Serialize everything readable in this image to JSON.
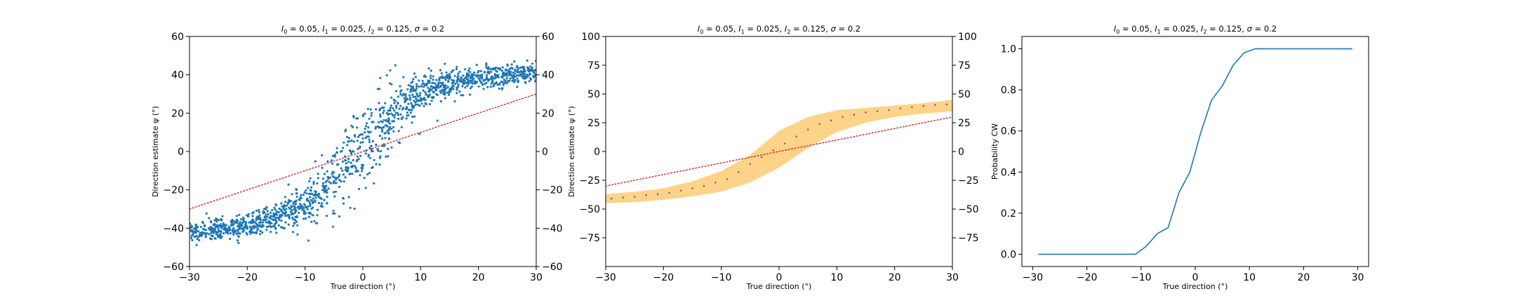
{
  "figure": {
    "panels": [
      {
        "title": "I_0 = 0.05, I_1 = 0.025, I_2 = 0.125, σ = 0.2",
        "title_parts": [
          "I",
          "0",
          " = 0.05, ",
          "I",
          "1",
          " = 0.025, ",
          "I",
          "2",
          " = 0.125, ",
          "σ",
          " = 0.2"
        ],
        "xlabel": "True direction (°)",
        "ylabel": "Direction estimate ψ (°)",
        "xticks": [
          "−30",
          "−20",
          "−10",
          "0",
          "10",
          "20",
          "30"
        ],
        "yticks": [
          "−60",
          "−40",
          "−20",
          "0",
          "20",
          "40",
          "60"
        ],
        "yticks_right": [
          "−60",
          "−40",
          "−20",
          "0",
          "20",
          "40",
          "60"
        ]
      },
      {
        "title": "I_0 = 0.05, I_1 = 0.025, I_2 = 0.125, σ = 0.2",
        "title_parts": [
          "I",
          "0",
          " = 0.05, ",
          "I",
          "1",
          " = 0.025, ",
          "I",
          "2",
          " = 0.125, ",
          "σ",
          " = 0.2"
        ],
        "xlabel": "True direction (°)",
        "ylabel": "Direction estimate ψ (°)",
        "xticks": [
          "−30",
          "−20",
          "−10",
          "0",
          "10",
          "20",
          "30"
        ],
        "yticks": [
          "−75",
          "−50",
          "−25",
          "0",
          "25",
          "50",
          "75",
          "100"
        ],
        "yticks_right": [
          "−75",
          "−50",
          "−25",
          "0",
          "25",
          "50",
          "75",
          "100"
        ]
      },
      {
        "title": "I_0 = 0.05, I_1 = 0.025, I_2 = 0.125, σ = 0.2",
        "title_parts": [
          "I",
          "0",
          " = 0.05, ",
          "I",
          "1",
          " = 0.025, ",
          "I",
          "2",
          " = 0.125, ",
          "σ",
          " = 0.2"
        ],
        "xlabel": "True direction (°)",
        "ylabel": "Probability CW",
        "xticks": [
          "−30",
          "−20",
          "−10",
          "0",
          "10",
          "20",
          "30"
        ],
        "yticks": [
          "0.0",
          "0.2",
          "0.4",
          "0.6",
          "0.8",
          "1.0"
        ]
      }
    ]
  },
  "colors": {
    "scatter": "#1f77b4",
    "identity_line": "#d62728",
    "band_fill": "#fdd38a",
    "mean_dots": "#7f6a5a",
    "prob_line": "#1f77b4",
    "axes": "#000000"
  },
  "chart_data": [
    {
      "type": "scatter",
      "title": "I_0 = 0.05, I_1 = 0.025, I_2 = 0.125, σ = 0.2",
      "xlabel": "True direction (°)",
      "ylabel": "Direction estimate ψ (°)",
      "xlim": [
        -30,
        30
      ],
      "ylim": [
        -60,
        60
      ],
      "secondary_y_ticks": true,
      "grid": false,
      "n_points": 1500,
      "series": [
        {
          "kind": "scatter",
          "x_range": [
            -30,
            30
          ],
          "mean_curve": {
            "x": [
              -30,
              -25,
              -20,
              -15,
              -10,
              -7.5,
              -5,
              -2.5,
              0,
              2.5,
              5,
              7.5,
              10,
              15,
              20,
              25,
              30
            ],
            "y": [
              -42,
              -41,
              -38,
              -34,
              -27,
              -22,
              -14,
              -6,
              2,
              10,
              19,
              26,
              31,
              36,
              38,
              40,
              42
            ]
          },
          "spread_sd": {
            "x": [
              -30,
              -20,
              -10,
              -5,
              0,
              5,
              10,
              20,
              30
            ],
            "y": [
              2.5,
              3,
              5,
              8,
              11,
              8,
              5,
              3,
              2.5
            ]
          }
        },
        {
          "kind": "line",
          "style": "dotted",
          "x": [
            -30,
            30
          ],
          "y": [
            -30,
            30
          ]
        }
      ]
    },
    {
      "type": "area",
      "title": "I_0 = 0.05, I_1 = 0.025, I_2 = 0.125, σ = 0.2",
      "xlabel": "True direction (°)",
      "ylabel": "Direction estimate ψ (°)",
      "xlim": [
        -30,
        30
      ],
      "ylim": [
        -100,
        100
      ],
      "secondary_y_ticks": true,
      "grid": false,
      "series": [
        {
          "kind": "band",
          "x": [
            -30,
            -25,
            -20,
            -15,
            -10,
            -5,
            0,
            5,
            10,
            15,
            20,
            25,
            30
          ],
          "lower": [
            -45,
            -44,
            -42,
            -39,
            -35,
            -27,
            -14,
            3,
            17,
            25,
            30,
            33,
            35
          ],
          "upper": [
            -37,
            -35,
            -32,
            -26,
            -17,
            -3,
            18,
            30,
            36,
            38,
            40,
            42,
            45
          ]
        },
        {
          "kind": "points",
          "x": [
            -29,
            -27,
            -25,
            -23,
            -21,
            -19,
            -17,
            -15,
            -13,
            -11,
            -9,
            -7,
            -5,
            -3,
            -1,
            1,
            3,
            5,
            7,
            9,
            11,
            13,
            15,
            17,
            19,
            21,
            23,
            25,
            27,
            29
          ],
          "y": [
            -41,
            -40,
            -39.5,
            -38,
            -37,
            -36,
            -34,
            -32,
            -30,
            -27,
            -24,
            -18,
            -11,
            -5,
            1,
            7,
            13,
            19,
            24,
            27,
            30,
            32,
            34,
            35,
            36,
            37.5,
            38.5,
            39.5,
            40.5,
            41
          ]
        },
        {
          "kind": "line",
          "style": "dotted",
          "x": [
            -30,
            30
          ],
          "y": [
            -30,
            30
          ]
        }
      ]
    },
    {
      "type": "line",
      "title": "I_0 = 0.05, I_1 = 0.025, I_2 = 0.125, σ = 0.2",
      "xlabel": "True direction (°)",
      "ylabel": "Probability CW",
      "xlim": [
        -32,
        32
      ],
      "ylim": [
        -0.06,
        1.06
      ],
      "grid": false,
      "series": [
        {
          "kind": "line",
          "x": [
            -29,
            -27,
            -25,
            -23,
            -21,
            -19,
            -17,
            -15,
            -13,
            -11,
            -9,
            -7,
            -5,
            -3,
            -1,
            1,
            3,
            5,
            7,
            9,
            11,
            13,
            15,
            17,
            19,
            21,
            23,
            25,
            27,
            29
          ],
          "y": [
            0,
            0,
            0,
            0,
            0,
            0,
            0,
            0,
            0,
            0,
            0.04,
            0.1,
            0.13,
            0.3,
            0.4,
            0.59,
            0.75,
            0.82,
            0.92,
            0.98,
            1,
            1,
            1,
            1,
            1,
            1,
            1,
            1,
            1,
            1
          ]
        }
      ]
    }
  ]
}
